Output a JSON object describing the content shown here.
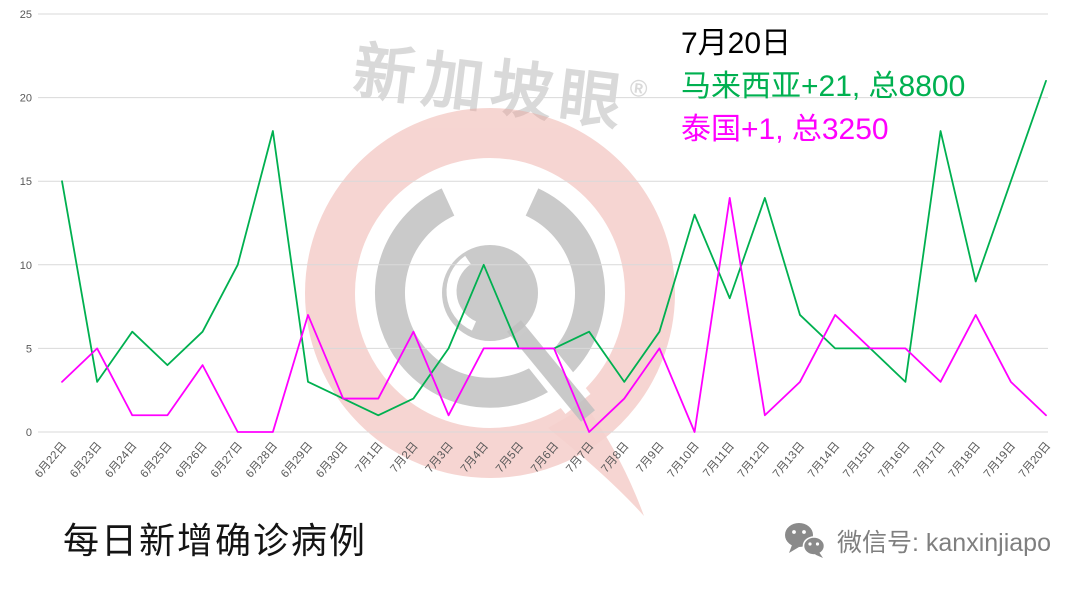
{
  "watermark": {
    "brand_text": "新加坡眼",
    "registered_mark": "®"
  },
  "annotation": {
    "date": "7月20日",
    "malaysia": "马来西亚+21, 总8800",
    "thailand": "泰国+1, 总3250"
  },
  "title": "每日新增确诊病例",
  "footer": {
    "wechat_label": "微信号: kanxinjiapo"
  },
  "colors": {
    "malaysia": "#00b050",
    "thailand": "#ff00ff",
    "gridline": "#d9d9d9",
    "axis_text": "#595959",
    "watermark_pink": "rgba(235,163,155,0.55)",
    "watermark_gray": "rgba(140,140,140,0.5)"
  },
  "chart_data": {
    "type": "line",
    "title": "每日新增确诊病例",
    "xlabel": "",
    "ylabel": "",
    "ylim": [
      0,
      25
    ],
    "yticks": [
      0,
      5,
      10,
      15,
      20,
      25
    ],
    "grid": true,
    "legend_position": "none",
    "categories": [
      "6月22日",
      "6月23日",
      "6月24日",
      "6月25日",
      "6月26日",
      "6月27日",
      "6月28日",
      "6月29日",
      "6月30日",
      "7月1日",
      "7月2日",
      "7月3日",
      "7月4日",
      "7月5日",
      "7月6日",
      "7月7日",
      "7月8日",
      "7月9日",
      "7月10日",
      "7月11日",
      "7月12日",
      "7月13日",
      "7月14日",
      "7月15日",
      "7月16日",
      "7月17日",
      "7月18日",
      "7月19日",
      "7月20日"
    ],
    "series": [
      {
        "name": "马来西亚",
        "color": "#00b050",
        "values": [
          15,
          3,
          6,
          4,
          6,
          10,
          18,
          3,
          2,
          1,
          2,
          5,
          10,
          5,
          5,
          6,
          3,
          6,
          13,
          8,
          14,
          7,
          5,
          5,
          3,
          18,
          9,
          15,
          21
        ]
      },
      {
        "name": "泰国",
        "color": "#ff00ff",
        "values": [
          3,
          5,
          1,
          1,
          4,
          0,
          0,
          7,
          2,
          2,
          6,
          1,
          5,
          5,
          5,
          0,
          2,
          5,
          0,
          14,
          1,
          3,
          7,
          5,
          5,
          3,
          7,
          3,
          1
        ]
      }
    ]
  }
}
